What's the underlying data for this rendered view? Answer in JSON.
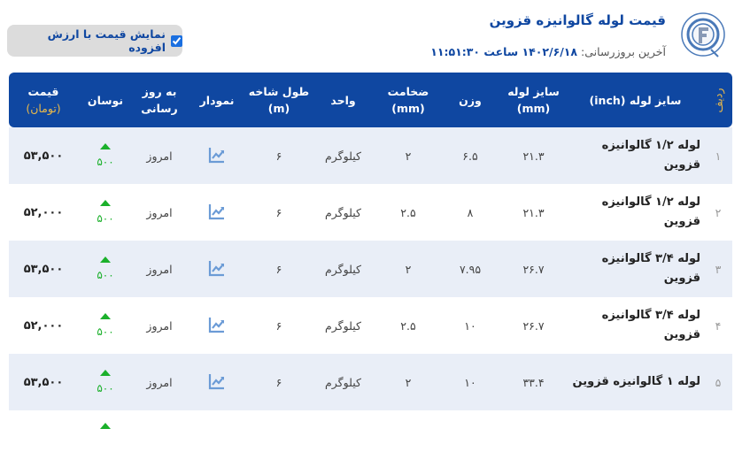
{
  "header": {
    "title": "قیمت لوله گالوانیزه قزوین",
    "updated_label": "آخرین بروزرسانی:",
    "updated_value": "۱۴۰۲/۶/۱۸ ساعت ۱۱:۵۱:۳۰",
    "logo_text": "QAZVIN FOOLAD CO."
  },
  "vat_toggle": {
    "label": "نمایش قیمت با ارزش افزوده",
    "checked": true
  },
  "columns": {
    "index": "ردیف",
    "name": "سایز لوله (inch)",
    "size1": "سایز لوله",
    "size2": "(mm)",
    "weight": "وزن",
    "thick1": "ضخامت",
    "thick2": "(mm)",
    "unit": "واحد",
    "len1": "طول شاخه",
    "len2": "(m)",
    "chart": "نمودار",
    "upd1": "به روز",
    "upd2": "رسانی",
    "fluct": "نوسان",
    "price1": "قیمت",
    "price2": "(تومان)"
  },
  "rows": [
    {
      "index": "۱",
      "name": "لوله ۱/۲ گالوانیزه قزوین",
      "size": "۲۱.۳",
      "weight": "۶.۵",
      "thickness": "۲",
      "unit": "کیلوگرم",
      "length": "۶",
      "updated": "امروز",
      "fluct": "۵۰۰",
      "price": "۵۳,۵۰۰"
    },
    {
      "index": "۲",
      "name": "لوله ۱/۲ گالوانیزه قزوین",
      "size": "۲۱.۳",
      "weight": "۸",
      "thickness": "۲.۵",
      "unit": "کیلوگرم",
      "length": "۶",
      "updated": "امروز",
      "fluct": "۵۰۰",
      "price": "۵۲,۰۰۰"
    },
    {
      "index": "۳",
      "name": "لوله ۳/۴ گالوانیزه قزوین",
      "size": "۲۶.۷",
      "weight": "۷.۹۵",
      "thickness": "۲",
      "unit": "کیلوگرم",
      "length": "۶",
      "updated": "امروز",
      "fluct": "۵۰۰",
      "price": "۵۳,۵۰۰"
    },
    {
      "index": "۴",
      "name": "لوله ۳/۴ گالوانیزه قزوین",
      "size": "۲۶.۷",
      "weight": "۱۰",
      "thickness": "۲.۵",
      "unit": "کیلوگرم",
      "length": "۶",
      "updated": "امروز",
      "fluct": "۵۰۰",
      "price": "۵۲,۰۰۰"
    },
    {
      "index": "۵",
      "name": "لوله ۱ گالوانیزه قزوین",
      "size": "۳۳.۴",
      "weight": "۱۰",
      "thickness": "۲",
      "unit": "کیلوگرم",
      "length": "۶",
      "updated": "امروز",
      "fluct": "۵۰۰",
      "price": "۵۳,۵۰۰"
    }
  ],
  "colors": {
    "header_bg": "#0f47a1",
    "accent_gold": "#e8b84a",
    "up_green": "#1bb02b"
  }
}
